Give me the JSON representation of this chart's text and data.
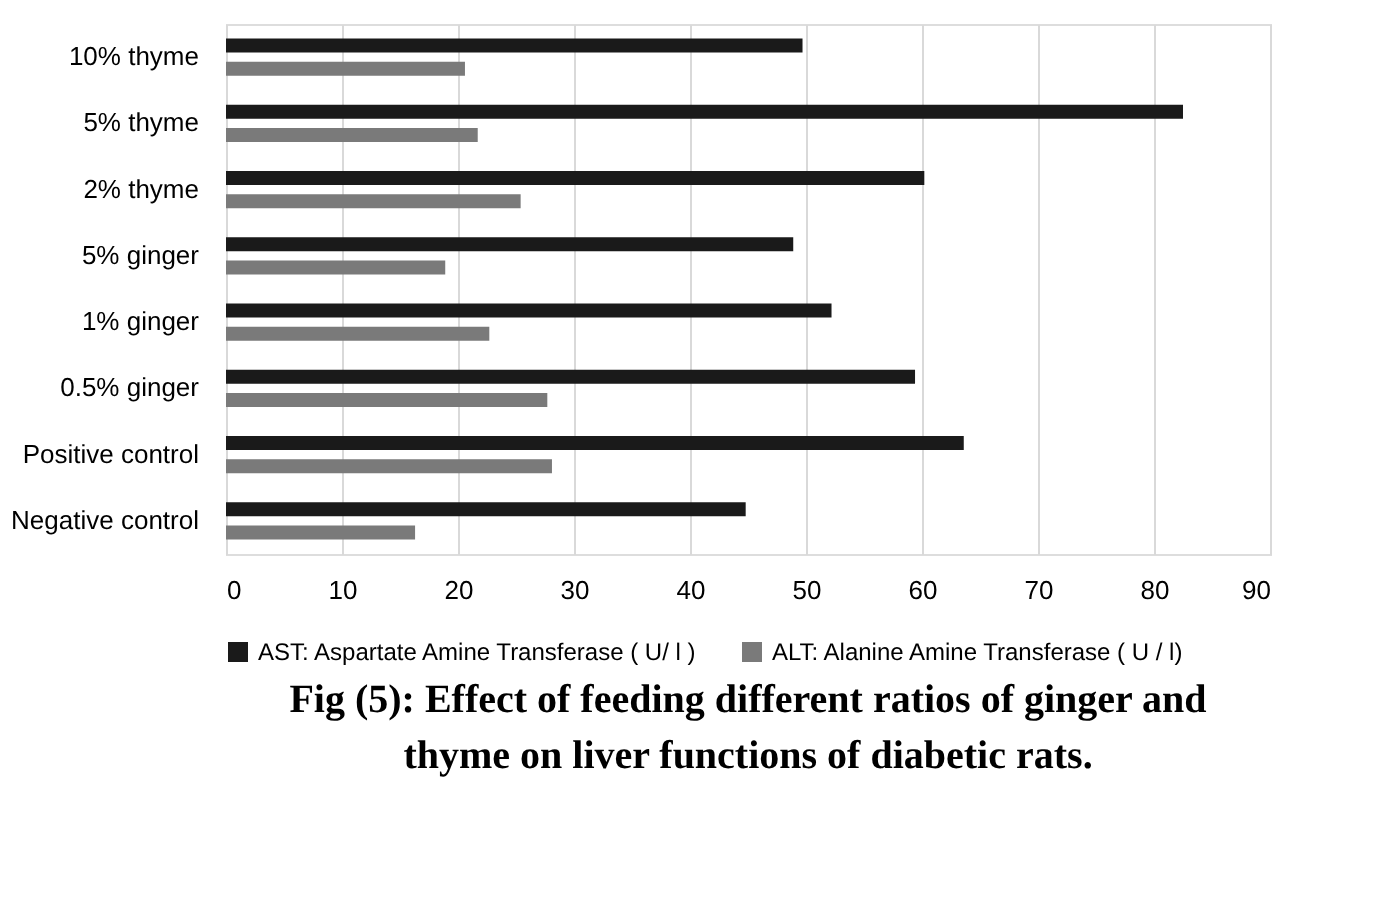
{
  "chart_data": {
    "type": "bar",
    "orientation": "horizontal",
    "title": "Fig (5): Effect of feeding different ratios of ginger  and thyme on liver functions of diabetic rats.",
    "categories": [
      "10% thyme",
      "5% thyme",
      "2% thyme",
      "5%  ginger",
      "1% ginger",
      "0.5% ginger",
      "Positive control",
      "Negative control"
    ],
    "series": [
      {
        "name": "AST: Aspartate Amine Transferase ( U/ l )",
        "color": "#1a1a1a",
        "values": [
          49.7,
          82.5,
          60.2,
          48.9,
          52.2,
          59.4,
          63.6,
          44.8
        ]
      },
      {
        "name": "ALT: Alanine Amine Transferase  ( U / l)",
        "color": "#7a7a7a",
        "values": [
          20.6,
          21.7,
          25.4,
          18.9,
          22.7,
          27.7,
          28.1,
          16.3
        ]
      }
    ],
    "xlim": [
      0,
      90
    ],
    "xticks": [
      0,
      10,
      20,
      30,
      40,
      50,
      60,
      70,
      80,
      90
    ],
    "grid": "x",
    "legend": "bottom"
  }
}
